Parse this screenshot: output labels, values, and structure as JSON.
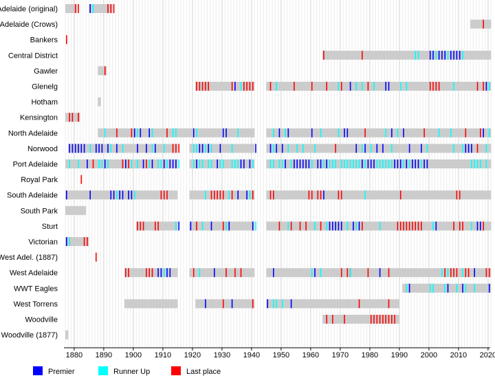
{
  "chart_data": {
    "type": "timeline",
    "title": "",
    "xlabel": "",
    "ylabel": "",
    "xlim": [
      1877,
      2021
    ],
    "x_ticks": [
      1880,
      1890,
      1900,
      1910,
      1920,
      1930,
      1940,
      1950,
      1960,
      1970,
      1980,
      1990,
      2000,
      2010,
      2020
    ],
    "grid": "vertical, every year",
    "legend_position": "bottom-left",
    "colors": {
      "membership": "#cccccc",
      "premier": "#0000ff",
      "runner_up": "#00ffff",
      "last": "#ff0000"
    },
    "legend": [
      {
        "key": "premier",
        "label": "Premier"
      },
      {
        "key": "runner_up",
        "label": "Runner Up"
      },
      {
        "key": "last",
        "label": "Last place"
      }
    ],
    "teams": [
      {
        "name": "Adelaide (original)",
        "spans": [
          [
            1877,
            1881
          ],
          [
            1885,
            1893
          ]
        ],
        "premier": [
          1885
        ],
        "runner_up": [
          1886
        ],
        "last": [
          1880,
          1881,
          1891,
          1892,
          1893
        ]
      },
      {
        "name": "Adelaide (Crows)",
        "spans": [
          [
            2014,
            2021
          ]
        ],
        "premier": [],
        "runner_up": [],
        "last": [
          2018
        ]
      },
      {
        "name": "Bankers",
        "spans": [],
        "premier": [],
        "runner_up": [],
        "last": [
          1877
        ]
      },
      {
        "name": "Central District",
        "spans": [
          [
            1964,
            2021
          ]
        ],
        "premier": [
          2000,
          2001,
          2003,
          2004,
          2005,
          2007,
          2008,
          2009,
          2010
        ],
        "runner_up": [
          1995,
          1996,
          2002,
          2006,
          2011
        ],
        "last": [
          1964,
          1977
        ]
      },
      {
        "name": "Gawler",
        "spans": [
          [
            1888,
            1891
          ]
        ],
        "premier": [],
        "runner_up": [],
        "last": [
          1890
        ]
      },
      {
        "name": "Glenelg",
        "spans": [
          [
            1921,
            1941
          ],
          [
            1945,
            2021
          ]
        ],
        "premier": [
          1934,
          1973,
          1985,
          1986,
          2019
        ],
        "runner_up": [
          1936,
          1948,
          1969,
          1975,
          1977,
          1981,
          1990,
          1992,
          2008,
          2020
        ],
        "last": [
          1921,
          1922,
          1923,
          1924,
          1925,
          1933,
          1937,
          1938,
          1939,
          1940,
          1946,
          1954,
          1960,
          1965,
          1970,
          1979,
          2000,
          2001,
          2002,
          2003,
          2016,
          2018
        ]
      },
      {
        "name": "Hotham",
        "spans": [
          [
            1888,
            1889
          ]
        ],
        "premier": [],
        "runner_up": [],
        "last": []
      },
      {
        "name": "Kensington",
        "spans": [
          [
            1877,
            1882
          ]
        ],
        "premier": [],
        "runner_up": [],
        "last": [
          1878,
          1879,
          1881
        ]
      },
      {
        "name": "North Adelaide",
        "spans": [
          [
            1888,
            1941
          ],
          [
            1945,
            2021
          ]
        ],
        "premier": [
          1900,
          1902,
          1905,
          1920,
          1930,
          1931,
          1949,
          1952,
          1960,
          1971,
          1972,
          1987,
          1991,
          2018
        ],
        "runner_up": [
          1890,
          1901,
          1906,
          1913,
          1914,
          1921,
          1935,
          1947,
          1951,
          1963,
          1969,
          1985,
          1989,
          2003,
          2007,
          2020
        ],
        "last": [
          1894,
          1899,
          1911,
          1978,
          1998,
          2012,
          2017
        ]
      },
      {
        "name": "Norwood",
        "spans": [
          [
            1878,
            1915
          ],
          [
            1919,
            1941
          ],
          [
            1945,
            2021
          ]
        ],
        "premier": [
          1878,
          1879,
          1880,
          1881,
          1882,
          1883,
          1887,
          1888,
          1889,
          1891,
          1894,
          1901,
          1904,
          1907,
          1922,
          1923,
          1925,
          1929,
          1941,
          1946,
          1948,
          1950,
          1975,
          1978,
          1982,
          1984,
          1993,
          1997,
          2012,
          2013,
          2014
        ],
        "runner_up": [
          1885,
          1892,
          1896,
          1906,
          1910,
          1920,
          1921,
          1924,
          1926,
          1933,
          1947,
          1952,
          1955,
          1957,
          1961,
          1977,
          1980,
          1987,
          1999,
          2008,
          2011,
          2019
        ],
        "last": [
          1913,
          1914,
          1915,
          1968,
          2016
        ]
      },
      {
        "name": "Port Adelaide",
        "spans": [
          [
            1877,
            1915
          ],
          [
            1919,
            1941
          ],
          [
            1945,
            2021
          ]
        ],
        "premier": [
          1884,
          1890,
          1897,
          1903,
          1906,
          1910,
          1912,
          1913,
          1914,
          1921,
          1928,
          1936,
          1937,
          1939,
          1951,
          1954,
          1955,
          1956,
          1957,
          1958,
          1959,
          1962,
          1963,
          1965,
          1977,
          1979,
          1980,
          1981,
          1988,
          1989,
          1990,
          1992,
          1994,
          1995,
          1996,
          1998,
          1999
        ],
        "runner_up": [
          1878,
          1881,
          1888,
          1889,
          1891,
          1899,
          1901,
          1905,
          1908,
          1909,
          1911,
          1915,
          1920,
          1922,
          1923,
          1925,
          1926,
          1929,
          1930,
          1933,
          1934,
          1935,
          1940,
          1946,
          1947,
          1949,
          1950,
          1953,
          1960,
          1964,
          1966,
          1967,
          1968,
          1970,
          1971,
          1972,
          1973,
          1974,
          1975,
          1976,
          1978,
          1982,
          1983,
          1984,
          1985,
          1986,
          1987,
          1991,
          1993,
          1997,
          2014,
          2015,
          2016,
          2017,
          2019
        ],
        "last": [
          1886,
          1896,
          1898,
          1904
        ]
      },
      {
        "name": "Royal Park",
        "spans": [],
        "premier": [],
        "runner_up": [],
        "last": [
          1882
        ]
      },
      {
        "name": "South Adelaide",
        "spans": [
          [
            1877,
            1915
          ],
          [
            1919,
            1941
          ],
          [
            1945,
            2021
          ]
        ],
        "premier": [
          1877,
          1885,
          1892,
          1893,
          1895,
          1896,
          1898,
          1899,
          1935,
          1938,
          1964
        ],
        "runner_up": [
          1894,
          1900,
          1924,
          1932,
          1939,
          1978
        ],
        "last": [
          1909,
          1910,
          1911,
          1926,
          1927,
          1928,
          1929,
          1930,
          1933,
          1940,
          1946,
          1947,
          1959,
          1960,
          1962,
          1963,
          1969,
          1970,
          1990,
          2009,
          2010
        ]
      },
      {
        "name": "South Park",
        "spans": [
          [
            1877,
            1884
          ]
        ],
        "premier": [],
        "runner_up": [],
        "last": []
      },
      {
        "name": "Sturt",
        "spans": [
          [
            1901,
            1915
          ],
          [
            1919,
            1941
          ],
          [
            1945,
            2021
          ]
        ],
        "premier": [
          1915,
          1919,
          1926,
          1932,
          1940,
          1966,
          1967,
          1968,
          1969,
          1970,
          1974,
          1976,
          2002,
          2016,
          2017
        ],
        "runner_up": [
          1914,
          1923,
          1931,
          1941,
          1952,
          1961,
          1965,
          1972,
          1975,
          1983,
          2001,
          2014
        ],
        "last": [
          1901,
          1902,
          1903,
          1907,
          1908,
          1921,
          1930,
          1949,
          1953,
          1956,
          1958,
          1963,
          1977,
          1989,
          1990,
          1991,
          1992,
          1993,
          1994,
          1995,
          1996,
          1997,
          2008,
          2010,
          2011,
          2018
        ]
      },
      {
        "name": "Victorian",
        "spans": [
          [
            1877,
            1885
          ]
        ],
        "premier": [
          1877
        ],
        "runner_up": [
          1878
        ],
        "last": [
          1883,
          1884
        ]
      },
      {
        "name": "West Adel. (1887)",
        "spans": [],
        "premier": [],
        "runner_up": [],
        "last": [
          1887
        ]
      },
      {
        "name": "West Adelaide",
        "spans": [
          [
            1897,
            1915
          ],
          [
            1919,
            1941
          ],
          [
            1945,
            2021
          ]
        ],
        "premier": [
          1908,
          1909,
          1911,
          1912,
          1927,
          1947,
          1961,
          1983,
          2015
        ],
        "runner_up": [
          1910,
          1922,
          1960,
          1963,
          1973,
          2004,
          2006,
          2011
        ],
        "last": [
          1897,
          1898,
          1904,
          1905,
          1906,
          1920,
          1931,
          1934,
          1936,
          1970,
          1972,
          1973,
          1979,
          1986,
          2005,
          2007,
          2008,
          2009,
          2012,
          2013,
          2019,
          2020
        ]
      },
      {
        "name": "WWT Eagles",
        "spans": [
          [
            1991,
            2021
          ]
        ],
        "premier": [
          1993,
          2006,
          2011,
          2020
        ],
        "runner_up": [
          1992,
          2000,
          2001,
          2005,
          2009,
          2012,
          2015
        ],
        "last": []
      },
      {
        "name": "West Torrens",
        "spans": [
          [
            1897,
            1915
          ],
          [
            1921,
            1941
          ],
          [
            1945,
            1990
          ]
        ],
        "premier": [
          1924,
          1933,
          1945,
          1953
        ],
        "runner_up": [
          1947,
          1948,
          1950
        ],
        "last": [
          1930,
          1940,
          1976,
          1986
        ]
      },
      {
        "name": "Woodville",
        "spans": [
          [
            1964,
            1990
          ]
        ],
        "premier": [],
        "runner_up": [],
        "last": [
          1965,
          1967,
          1971,
          1980,
          1981,
          1982,
          1983,
          1984,
          1985,
          1986,
          1987,
          1988
        ]
      },
      {
        "name": "Woodville (1877)",
        "spans": [
          [
            1877,
            1878
          ]
        ],
        "premier": [],
        "runner_up": [],
        "last": []
      }
    ]
  }
}
